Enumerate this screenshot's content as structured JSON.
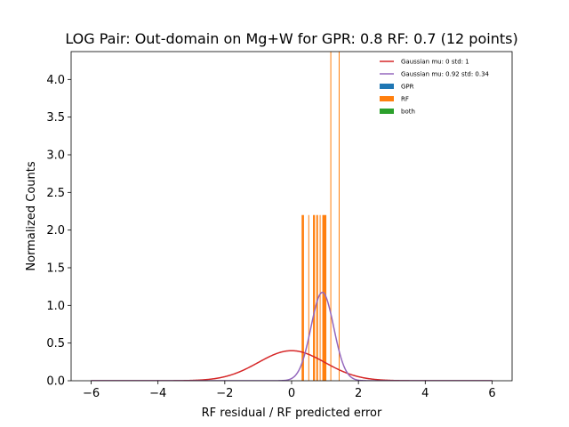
{
  "chart_data": {
    "type": "histogram",
    "title": "LOG Pair: Out-domain on Mg+W for GPR: 0.8 RF: 0.7 (12 points)",
    "xlabel": "RF residual / RF predicted error",
    "ylabel": "Normalized Counts",
    "xlim": [
      -6.6,
      6.6
    ],
    "ylim": [
      0,
      4.37
    ],
    "xticks": [
      -6,
      -4,
      -2,
      0,
      2,
      4,
      6
    ],
    "xtick_labels": [
      "−6",
      "−4",
      "−2",
      "0",
      "2",
      "4",
      "6"
    ],
    "yticks": [
      0,
      0.5,
      1.0,
      1.5,
      2.0,
      2.5,
      3.0,
      3.5,
      4.0
    ],
    "ytick_labels": [
      "0.0",
      "0.5",
      "1.0",
      "1.5",
      "2.0",
      "2.5",
      "3.0",
      "3.5",
      "4.0"
    ],
    "legend_position": "top-right",
    "legend": [
      {
        "label": "Gaussian mu: 0 std: 1",
        "kind": "line",
        "color": "#d62728"
      },
      {
        "label": "Gaussian mu: 0.92 std: 0.34",
        "kind": "line",
        "color": "#9467bd"
      },
      {
        "label": "GPR",
        "kind": "patch",
        "color": "#1f77b4"
      },
      {
        "label": "RF",
        "kind": "patch",
        "color": "#ff7f0e"
      },
      {
        "label": "both",
        "kind": "patch",
        "color": "#2ca02c"
      }
    ],
    "gaussians": [
      {
        "name": "Gaussian mu: 0 std: 1",
        "mu": 0,
        "std": 1,
        "color": "#d62728",
        "range": [
          -6,
          6
        ]
      },
      {
        "name": "Gaussian mu: 0.92 std: 0.34",
        "mu": 0.92,
        "std": 0.34,
        "color": "#9467bd",
        "range": [
          -6,
          6
        ]
      }
    ],
    "bars": [
      {
        "series": "RF",
        "x0": 0.3,
        "x1": 0.37,
        "height": 2.2
      },
      {
        "series": "RF",
        "x0": 0.5,
        "x1": 0.52,
        "height": 2.2
      },
      {
        "series": "RF",
        "x0": 0.64,
        "x1": 0.7,
        "height": 2.2
      },
      {
        "series": "RF",
        "x0": 0.74,
        "x1": 0.79,
        "height": 2.2
      },
      {
        "series": "RF",
        "x0": 0.84,
        "x1": 0.86,
        "height": 2.2
      },
      {
        "series": "RF",
        "x0": 0.92,
        "x1": 1.04,
        "height": 2.2
      },
      {
        "series": "RF",
        "x0": 1.16,
        "x1": 1.18,
        "height": 4.4
      },
      {
        "series": "RF",
        "x0": 1.41,
        "x1": 1.43,
        "height": 4.4
      }
    ],
    "colors": {
      "GPR": "#1f77b4",
      "RF": "#ff7f0e",
      "both": "#2ca02c"
    }
  }
}
